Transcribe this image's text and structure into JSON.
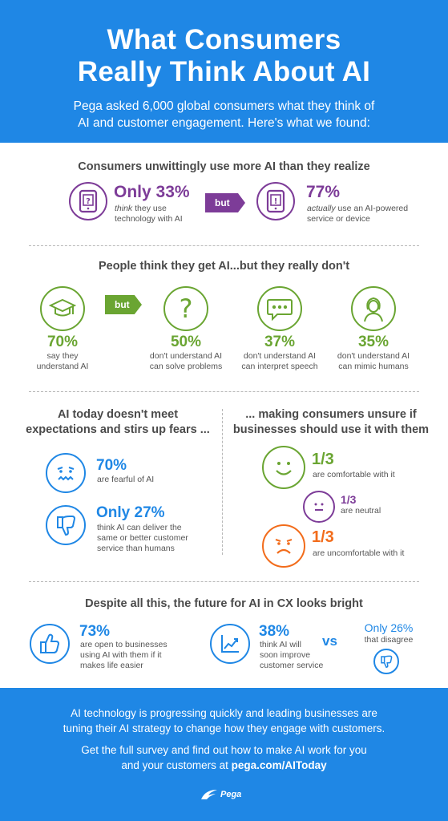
{
  "header": {
    "title_line1": "What Consumers",
    "title_line2": "Really Think About AI",
    "intro_line1": "Pega asked 6,000 global consumers what they think of",
    "intro_line2": "AI and customer engagement. Here's what we found:"
  },
  "s1": {
    "title": "Consumers unwittingly use more AI than they realize",
    "left_pct": "Only 33%",
    "left_em": "think",
    "left_rest1": " they use",
    "left_line2": "technology with AI",
    "but": "but",
    "right_pct": "77%",
    "right_em": "actually",
    "right_rest1": " use an AI-powered",
    "right_line2": "service or device"
  },
  "s2": {
    "title": "People think they get AI...but they really don't",
    "but": "but",
    "items": [
      {
        "pct": "70%",
        "line1": "say they",
        "line2": "understand AI",
        "icon": "graduation-cap-icon"
      },
      {
        "pct": "50%",
        "line1": "don't understand AI",
        "line2": "can solve problems",
        "icon": "question-icon"
      },
      {
        "pct": "37%",
        "line1": "don't understand AI",
        "line2": "can interpret speech",
        "icon": "speech-bubble-icon"
      },
      {
        "pct": "35%",
        "line1": "don't understand AI",
        "line2": "can mimic humans",
        "icon": "person-icon"
      }
    ]
  },
  "s3": {
    "left_title_line1": "AI today doesn't meet",
    "left_title_line2": "expectations and stirs up fears ...",
    "fear_pct": "70%",
    "fear_text": "are fearful of AI",
    "only_pct": "Only 27%",
    "only_line1": "think AI can deliver the",
    "only_line2": "same or better customer",
    "only_line3": "service than humans",
    "right_title_line1": "... making consumers unsure if",
    "right_title_line2": "businesses should use it with them",
    "comfortable_pct": "1/3",
    "comfortable_text": "are comfortable with it",
    "neutral_pct": "1/3",
    "neutral_text": "are neutral",
    "uncomfortable_pct": "1/3",
    "uncomfortable_text": "are uncomfortable with it"
  },
  "s4": {
    "title": "Despite all this, the future for AI in CX looks bright",
    "open_pct": "73%",
    "open_line1": "are open to businesses",
    "open_line2": "using AI with them if it",
    "open_line3": "makes life easier",
    "improve_pct": "38%",
    "improve_line1": "think AI will",
    "improve_line2": "soon improve",
    "improve_line3": "customer service",
    "vs": "vs",
    "disagree_pct": "Only 26%",
    "disagree_text": "that disagree"
  },
  "footer": {
    "line1": "AI technology is progressing quickly and leading businesses are",
    "line2": "tuning their AI strategy to change how they engage with customers.",
    "line3": "Get the full survey and find out how to make AI work for you",
    "line4_pre": "and your customers at ",
    "line4_link": "pega.com/AIToday",
    "logo": "Pega"
  },
  "colors": {
    "blue": "#1f87e5",
    "purple": "#7d3c98",
    "green": "#6aa532",
    "orange": "#f26c1b"
  }
}
